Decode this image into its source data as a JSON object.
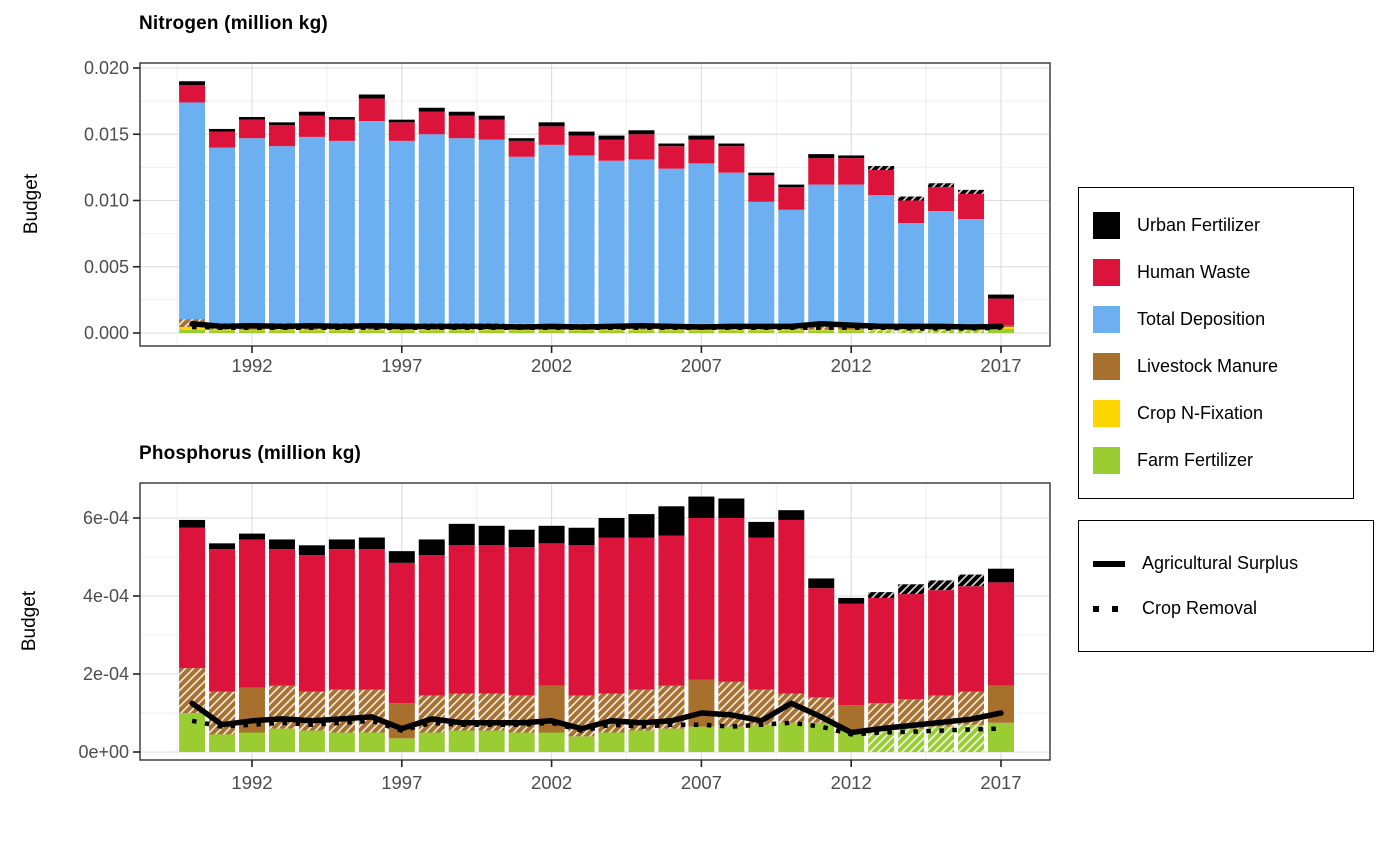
{
  "figure_background": "#FFFFFF",
  "colors": {
    "urban_fertilizer": "#000000",
    "human_waste": "#DC143C",
    "total_deposition": "#6CB0F2",
    "livestock_manure": "#A8702D",
    "crop_n_fixation": "#FFD700",
    "farm_fertilizer": "#9ACD32",
    "grid_major": "#DCDCDC",
    "grid_minor": "#EFEFEF",
    "panel_border": "#333333",
    "tick_text": "#4D4D4D"
  },
  "legend": {
    "fill": {
      "items": [
        {
          "label": "Urban Fertilizer",
          "color": "#000000"
        },
        {
          "label": "Human Waste",
          "color": "#DC143C"
        },
        {
          "label": "Total Deposition",
          "color": "#6CB0F2"
        },
        {
          "label": "Livestock Manure",
          "color": "#A8702D"
        },
        {
          "label": "Crop N-Fixation",
          "color": "#FFD700"
        },
        {
          "label": "Farm Fertilizer",
          "color": "#9ACD32"
        }
      ]
    },
    "line": {
      "items": [
        {
          "label": "Agricultural Surplus",
          "style": "solid"
        },
        {
          "label": "Crop Removal",
          "style": "dotted"
        }
      ]
    }
  },
  "chart_data": [
    {
      "id": "n",
      "type": "bar",
      "stacked": true,
      "title": "Nitrogen (million kg)",
      "ylabel": "Budget",
      "ylim": [
        0,
        0.0204
      ],
      "grid": true,
      "x": [
        1990,
        1991,
        1992,
        1993,
        1994,
        1995,
        1996,
        1997,
        1998,
        1999,
        2000,
        2001,
        2002,
        2003,
        2004,
        2005,
        2006,
        2007,
        2008,
        2009,
        2010,
        2011,
        2012,
        2013,
        2014,
        2015,
        2016,
        2017
      ],
      "x_ticks": [
        1992,
        1997,
        2002,
        2007,
        2012,
        2017
      ],
      "y_ticks": {
        "values": [
          0,
          0.005,
          0.01,
          0.015,
          0.02
        ],
        "labels": [
          "0.000",
          "0.005",
          "0.010",
          "0.015",
          "0.020"
        ]
      },
      "y_minor": [
        0.0025,
        0.0075,
        0.0125,
        0.0175
      ],
      "series": [
        {
          "key": "farm_fertilizer",
          "name": "Farm Fertilizer",
          "color": "#9ACD32",
          "values": [
            0.00025,
            0.0002,
            0.0002,
            0.0002,
            0.0002,
            0.0002,
            0.0002,
            0.0002,
            0.0002,
            0.0002,
            0.0002,
            0.0002,
            0.0002,
            0.0002,
            0.0002,
            0.0002,
            0.0002,
            0.0002,
            0.0002,
            0.0002,
            0.0002,
            0.0002,
            0.0002,
            0.0002,
            0.0002,
            0.0002,
            0.0002,
            0.0003
          ]
        },
        {
          "key": "crop_n_fixation",
          "name": "Crop N-Fixation",
          "color": "#FFD700",
          "values": [
            0.0002,
            5e-05,
            5e-05,
            5e-05,
            5e-05,
            5e-05,
            5e-05,
            5e-05,
            5e-05,
            5e-05,
            5e-05,
            5e-05,
            5e-05,
            5e-05,
            5e-05,
            5e-05,
            5e-05,
            5e-05,
            5e-05,
            5e-05,
            5e-05,
            5e-05,
            5e-05,
            5e-05,
            5e-05,
            5e-05,
            5e-05,
            0.00015
          ]
        },
        {
          "key": "livestock_manure",
          "name": "Livestock Manure",
          "color": "#A8702D",
          "values": [
            0.0006,
            0.0005,
            0.0005,
            0.0005,
            0.0005,
            0.0005,
            0.0005,
            0.0005,
            0.0005,
            0.0005,
            0.0005,
            0.00045,
            0.00045,
            0.00045,
            0.00045,
            0.00045,
            0.00045,
            0.00045,
            0.00045,
            0.00045,
            0.00045,
            0.00045,
            0.00045,
            0.0004,
            0.0004,
            0.0004,
            0.0004,
            0.0001
          ]
        },
        {
          "key": "total_deposition",
          "name": "Total Deposition",
          "color": "#6CB0F2",
          "values": [
            0.01635,
            0.01325,
            0.01395,
            0.01335,
            0.01405,
            0.01375,
            0.01525,
            0.01375,
            0.01425,
            0.01395,
            0.01385,
            0.0126,
            0.0135,
            0.0127,
            0.0123,
            0.0124,
            0.0117,
            0.0121,
            0.0114,
            0.0092,
            0.0086,
            0.0105,
            0.0105,
            0.00975,
            0.00765,
            0.00855,
            0.00795,
            0.0
          ]
        },
        {
          "key": "human_waste",
          "name": "Human Waste",
          "color": "#DC143C",
          "values": [
            0.0013,
            0.0012,
            0.0014,
            0.0016,
            0.0016,
            0.0016,
            0.0017,
            0.0014,
            0.0017,
            0.0017,
            0.0015,
            0.0012,
            0.0014,
            0.0015,
            0.0016,
            0.0019,
            0.0017,
            0.0018,
            0.002,
            0.002,
            0.0017,
            0.002,
            0.002,
            0.0019,
            0.0017,
            0.0018,
            0.0019,
            0.00205
          ]
        },
        {
          "key": "urban_fertilizer",
          "name": "Urban Fertilizer",
          "color": "#000000",
          "values": [
            0.0003,
            0.0002,
            0.0002,
            0.0002,
            0.0003,
            0.0002,
            0.0003,
            0.0002,
            0.0003,
            0.0003,
            0.0003,
            0.0002,
            0.0003,
            0.0003,
            0.0003,
            0.0003,
            0.0002,
            0.0003,
            0.0002,
            0.0002,
            0.0002,
            0.0003,
            0.0002,
            0.0003,
            0.0003,
            0.0003,
            0.0003,
            0.0003
          ]
        }
      ],
      "lines": [
        {
          "key": "agricultural_surplus",
          "name": "Agricultural Surplus",
          "style": "solid",
          "values": [
            0.0007,
            0.0005,
            0.00055,
            0.0005,
            0.00055,
            0.0005,
            0.00055,
            0.0005,
            0.0005,
            0.0005,
            0.0005,
            0.00045,
            0.0005,
            0.00045,
            0.0005,
            0.00055,
            0.0005,
            0.00045,
            0.0005,
            0.0005,
            0.0005,
            0.0007,
            0.0006,
            0.0005,
            0.0005,
            0.0005,
            0.00045,
            0.0005
          ]
        },
        {
          "key": "crop_removal",
          "name": "Crop Removal",
          "style": "dotted",
          "values": [
            0.00045,
            0.0004,
            0.0004,
            0.0004,
            0.0004,
            0.0004,
            0.0004,
            0.0004,
            0.0004,
            0.0004,
            0.0004,
            0.0004,
            0.0004,
            0.0004,
            0.0004,
            0.0004,
            0.0004,
            0.0004,
            0.0004,
            0.0004,
            0.0004,
            0.0004,
            0.0004,
            0.0004,
            0.00035,
            0.00035,
            0.00035,
            0.0004
          ]
        }
      ],
      "solid_manure_years": [
        1992,
        1997,
        2002,
        2007,
        2012,
        2017
      ],
      "hatch_all_years": [
        2013,
        2014,
        2015,
        2016
      ]
    },
    {
      "id": "p",
      "type": "bar",
      "stacked": true,
      "title": "Phosphorus (million kg)",
      "ylabel": "Budget",
      "ylim": [
        0,
        0.0007
      ],
      "grid": true,
      "x": [
        1990,
        1991,
        1992,
        1993,
        1994,
        1995,
        1996,
        1997,
        1998,
        1999,
        2000,
        2001,
        2002,
        2003,
        2004,
        2005,
        2006,
        2007,
        2008,
        2009,
        2010,
        2011,
        2012,
        2013,
        2014,
        2015,
        2016,
        2017
      ],
      "x_ticks": [
        1992,
        1997,
        2002,
        2007,
        2012,
        2017
      ],
      "y_ticks": {
        "values": [
          0,
          0.0002,
          0.0004,
          0.0006
        ],
        "labels": [
          "0e+00",
          "2e-04",
          "4e-04",
          "6e-04"
        ]
      },
      "y_minor": [
        0.0001,
        0.0003,
        0.0005,
        0.0007
      ],
      "series": [
        {
          "key": "farm_fertilizer",
          "name": "Farm Fertilizer",
          "color": "#9ACD32",
          "values": [
            0.0001,
            4.5e-05,
            5e-05,
            6e-05,
            5.5e-05,
            5e-05,
            5e-05,
            3.5e-05,
            5e-05,
            5.5e-05,
            5.5e-05,
            5e-05,
            5e-05,
            4e-05,
            5e-05,
            5.5e-05,
            6e-05,
            6.5e-05,
            6.5e-05,
            7e-05,
            7.5e-05,
            7.5e-05,
            5.5e-05,
            6e-05,
            6e-05,
            6.5e-05,
            7e-05,
            7.5e-05
          ]
        },
        {
          "key": "crop_n_fixation",
          "name": "Crop N-Fixation",
          "color": "#FFD700",
          "values": [
            0,
            0,
            0,
            0,
            0,
            0,
            0,
            0,
            0,
            0,
            0,
            0,
            0,
            0,
            0,
            0,
            0,
            0,
            0,
            0,
            0,
            0,
            0,
            0,
            0,
            0,
            0,
            0
          ]
        },
        {
          "key": "livestock_manure",
          "name": "Livestock Manure",
          "color": "#A8702D",
          "values": [
            0.000115,
            0.00011,
            0.000115,
            0.00011,
            0.0001,
            0.00011,
            0.00011,
            9e-05,
            9.5e-05,
            9.5e-05,
            9.5e-05,
            9.5e-05,
            0.00012,
            0.000105,
            0.0001,
            0.000105,
            0.00011,
            0.00012,
            0.000115,
            9e-05,
            7.5e-05,
            6.5e-05,
            6.5e-05,
            6.5e-05,
            7.5e-05,
            8e-05,
            8.5e-05,
            9.5e-05
          ]
        },
        {
          "key": "total_deposition",
          "name": "Total Deposition",
          "color": "#6CB0F2",
          "values": [
            0,
            0,
            0,
            0,
            0,
            0,
            0,
            0,
            0,
            0,
            0,
            0,
            0,
            0,
            0,
            0,
            0,
            0,
            0,
            0,
            0,
            0,
            0,
            0,
            0,
            0,
            0,
            0
          ]
        },
        {
          "key": "human_waste",
          "name": "Human Waste",
          "color": "#DC143C",
          "values": [
            0.00036,
            0.000365,
            0.00038,
            0.00035,
            0.00035,
            0.00036,
            0.00036,
            0.00036,
            0.00036,
            0.00038,
            0.00038,
            0.00038,
            0.000365,
            0.000385,
            0.0004,
            0.00039,
            0.000385,
            0.000415,
            0.00042,
            0.00039,
            0.000445,
            0.00028,
            0.00026,
            0.00027,
            0.00027,
            0.00027,
            0.00027,
            0.000265
          ]
        },
        {
          "key": "urban_fertilizer",
          "name": "Urban Fertilizer",
          "color": "#000000",
          "values": [
            2e-05,
            1.5e-05,
            1.5e-05,
            2.5e-05,
            2.5e-05,
            2.5e-05,
            3e-05,
            3e-05,
            4e-05,
            5.5e-05,
            5e-05,
            4.5e-05,
            4.5e-05,
            4.5e-05,
            5e-05,
            6e-05,
            7.5e-05,
            5.5e-05,
            5e-05,
            4e-05,
            2.5e-05,
            2.5e-05,
            1.5e-05,
            1.5e-05,
            2.5e-05,
            2.5e-05,
            3e-05,
            3.5e-05
          ]
        }
      ],
      "lines": [
        {
          "key": "agricultural_surplus",
          "name": "Agricultural Surplus",
          "style": "solid",
          "values": [
            0.000125,
            7e-05,
            8e-05,
            8.5e-05,
            8e-05,
            8.5e-05,
            9e-05,
            6e-05,
            8.5e-05,
            7.5e-05,
            7.5e-05,
            7.5e-05,
            8e-05,
            6e-05,
            8e-05,
            7.5e-05,
            8e-05,
            0.0001,
            9.5e-05,
            8e-05,
            0.000125,
            9e-05,
            5e-05,
            6e-05,
            6.8e-05,
            7.6e-05,
            8.4e-05,
            0.0001
          ]
        },
        {
          "key": "crop_removal",
          "name": "Crop Removal",
          "style": "dotted",
          "values": [
            8e-05,
            6.5e-05,
            7e-05,
            7.5e-05,
            7e-05,
            7.5e-05,
            8e-05,
            5.5e-05,
            7.5e-05,
            7e-05,
            7e-05,
            7e-05,
            7.5e-05,
            5.5e-05,
            7e-05,
            6.5e-05,
            7e-05,
            7e-05,
            6.5e-05,
            7e-05,
            7.5e-05,
            6.5e-05,
            4.5e-05,
            5e-05,
            5.2e-05,
            5.5e-05,
            5.8e-05,
            6e-05
          ]
        }
      ],
      "solid_manure_years": [
        1992,
        1997,
        2002,
        2007,
        2012,
        2017
      ],
      "hatch_all_years": [
        2013,
        2014,
        2015,
        2016
      ]
    }
  ]
}
